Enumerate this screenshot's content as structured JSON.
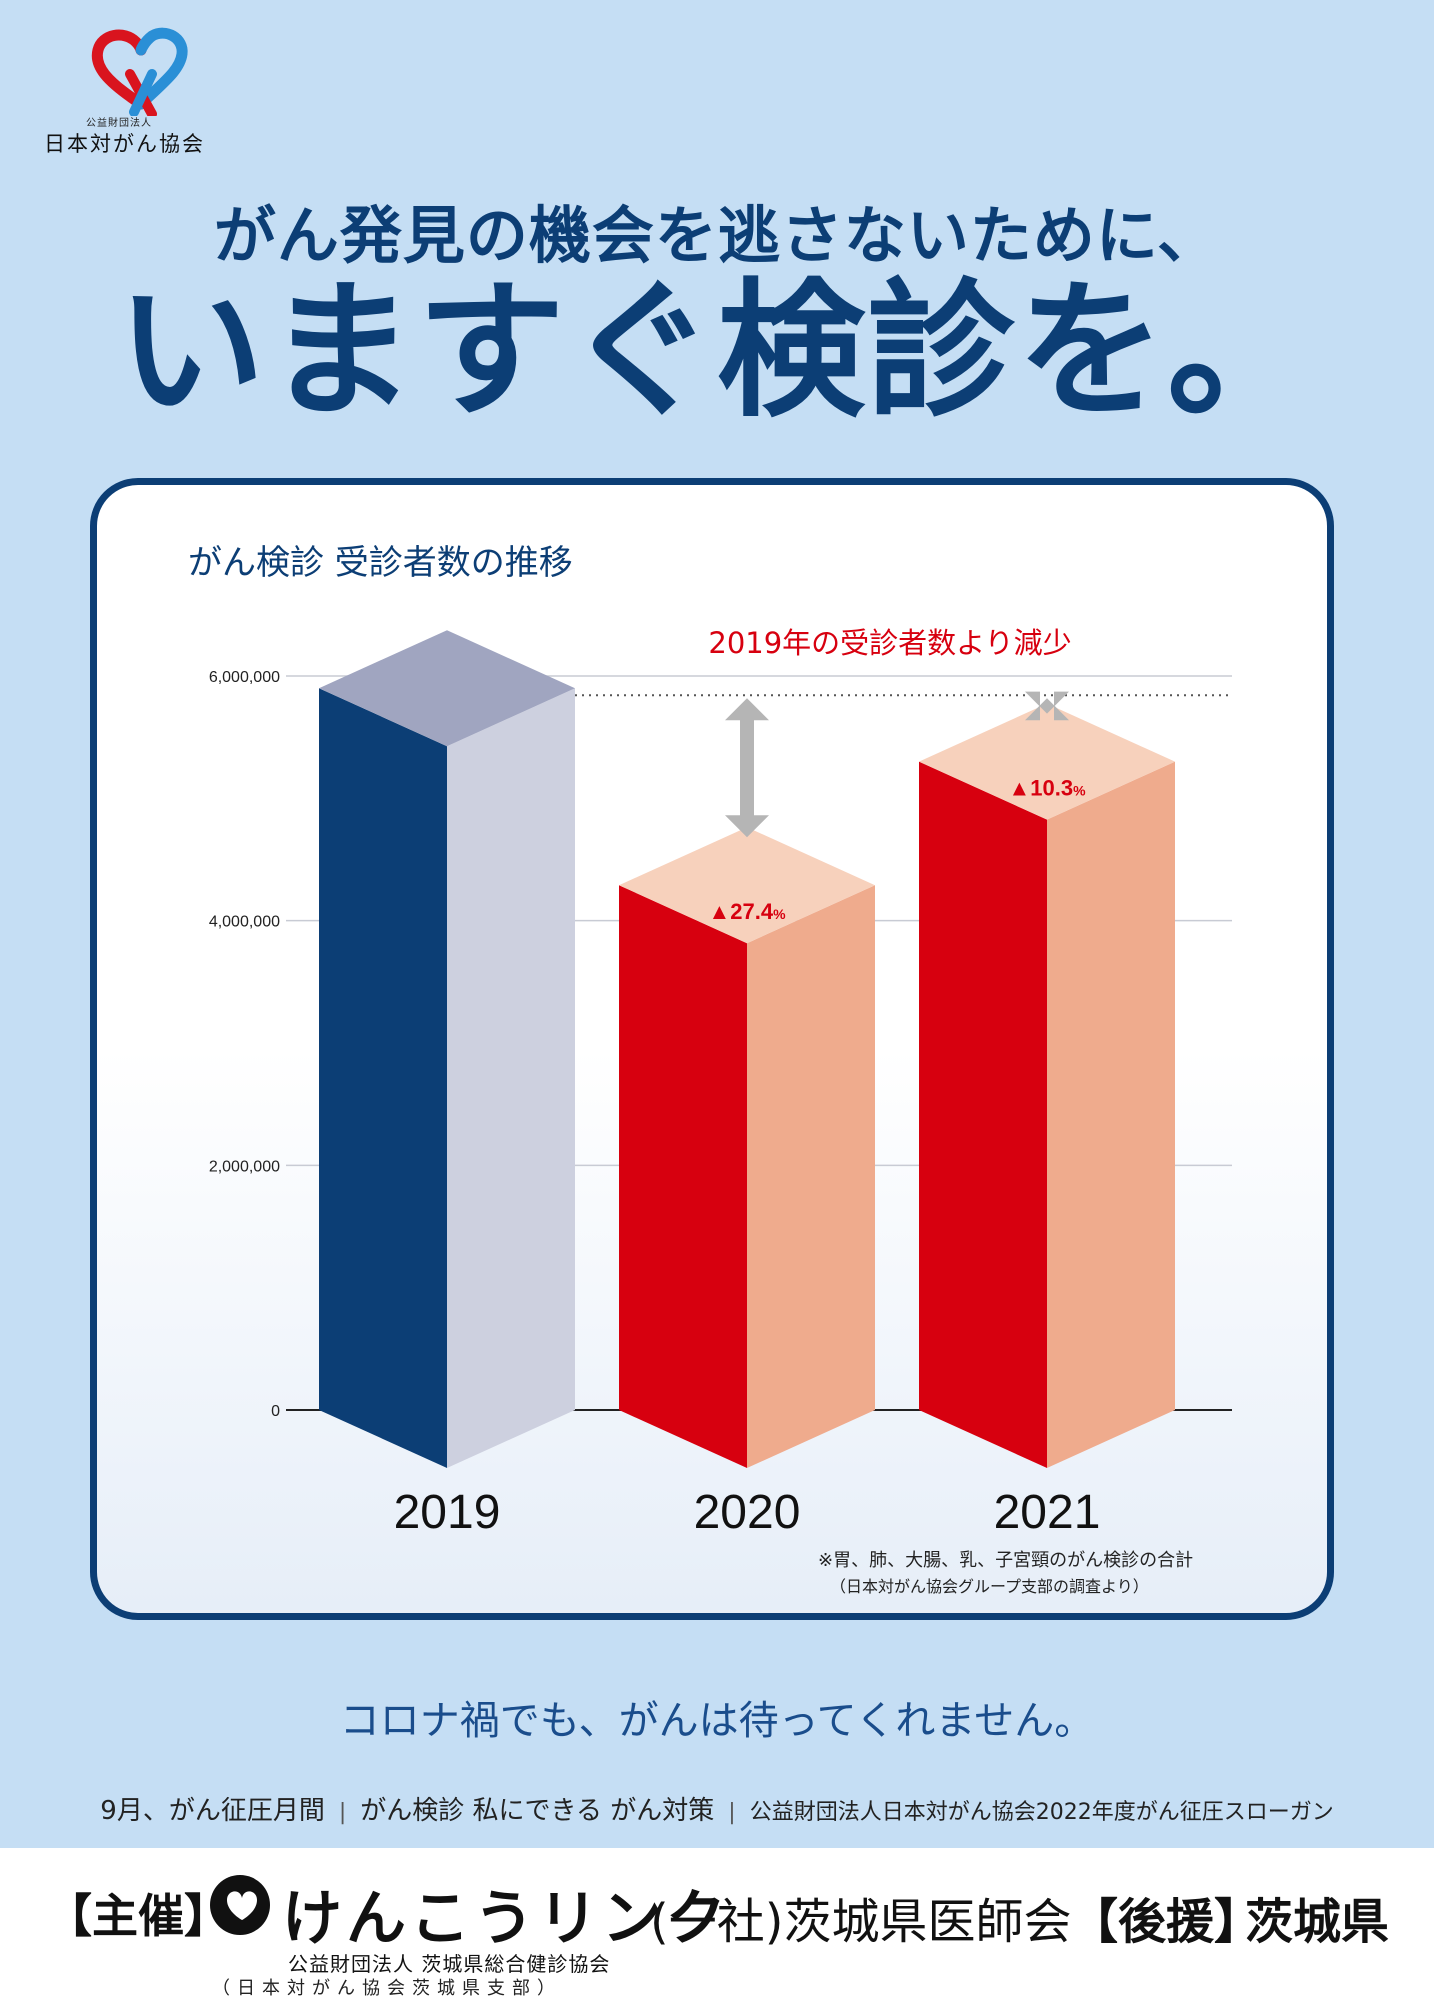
{
  "logo": {
    "small_text": "公益財団法人",
    "name": "日本対がん協会",
    "colors": {
      "blue": "#2a8fd6",
      "red": "#d9141e"
    }
  },
  "headline": {
    "line1": "がん発見の機会を逃さないために、",
    "line2": "いますぐ検診を。"
  },
  "chart_title": "がん検診 受診者数の推移",
  "chart_data": {
    "type": "bar",
    "categories": [
      "2019",
      "2020",
      "2021"
    ],
    "values": [
      5900000,
      4290000,
      5300000
    ],
    "ylim": [
      0,
      6000000
    ],
    "yticks": [
      "0",
      "2,000,000",
      "4,000,000",
      "6,000,000"
    ],
    "ytick_values": [
      0,
      2000000,
      4000000,
      6000000
    ],
    "annotation_heading": "2019年の受診者数より減少",
    "decreases": [
      {
        "category": "2020",
        "label": "▲27.4",
        "unit": "%"
      },
      {
        "category": "2021",
        "label": "▲10.3",
        "unit": "%"
      }
    ],
    "colors": {
      "2019_front": "#0c3e75",
      "2019_side": "#cdd0df",
      "2019_top": "#a0a5c0",
      "front": "#d7000f",
      "side": "#efab8d",
      "top": "#f7d1bc",
      "arrow": "#b5b5b5",
      "red_text": "#d7000f"
    },
    "notes": [
      "※胃、肺、大腸、乳、子宮頸のがん検診の合計",
      "（日本対がん協会グループ支部の調査より）"
    ]
  },
  "tagline": "コロナ禍でも、がんは待ってくれません。",
  "slogan": {
    "part1": "9月、がん征圧月間",
    "part2": "がん検診 私にできる がん対策",
    "part3": "公益財団法人日本対がん協会2022年度がん征圧スローガン"
  },
  "footer": {
    "organizer_label": "【主催】",
    "brand": "けんこうリンク",
    "org_line1": "公益財団法人 茨城県総合健診協会",
    "org_line2": "（日本対がん協会茨城県支部）",
    "medical": "(一社)茨城県医師会",
    "support_label": "【後援】",
    "prefecture": "茨城県"
  }
}
